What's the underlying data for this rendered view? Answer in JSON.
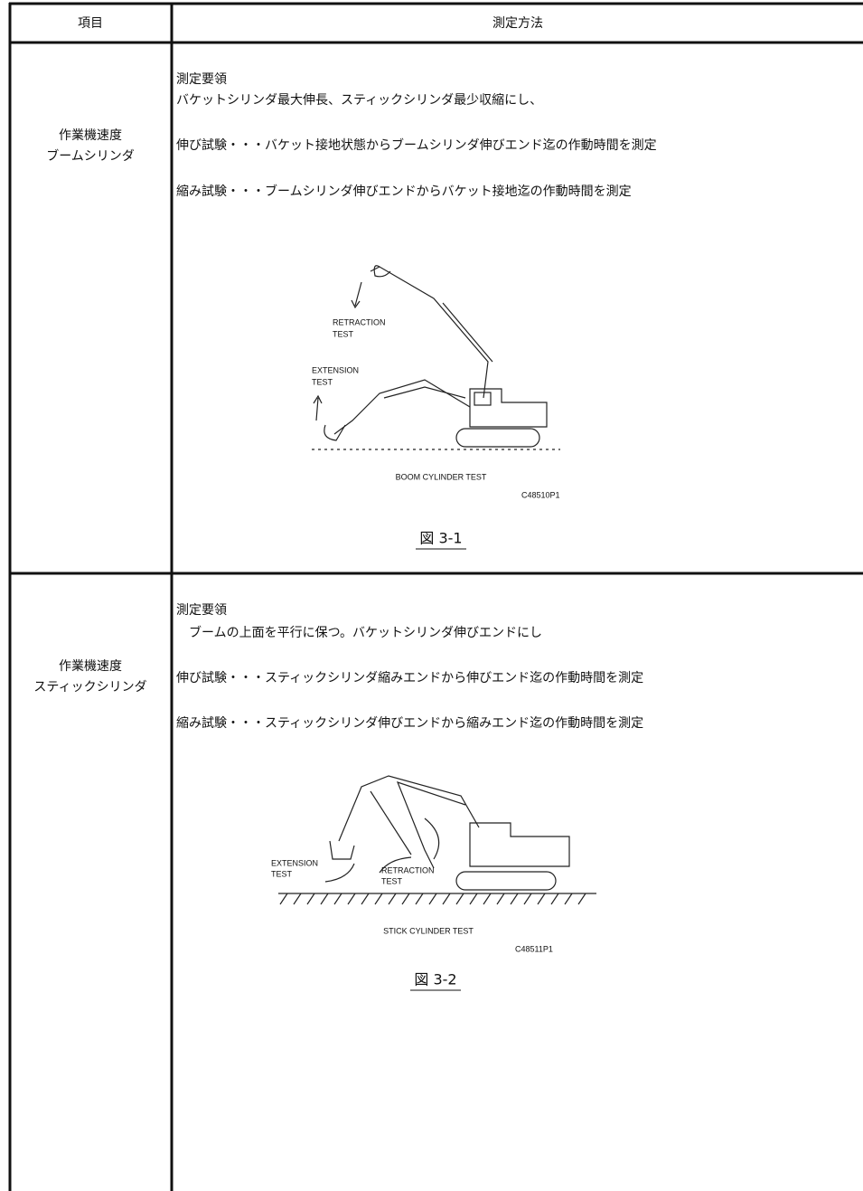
{
  "header": {
    "col1": "項目",
    "col2": "測定方法"
  },
  "rows": [
    {
      "item": [
        "作業機速度",
        "ブームシリンダ"
      ],
      "method": [
        "測定要領",
        "バケットシリンダ最大伸長、スティックシリンダ最少収縮にし、",
        "伸び試験・・・バケット接地状態からブームシリンダ伸びエンド迄の作動時間を測定",
        "縮み試験・・・ブームシリンダ伸びエンドからバケット接地迄の作動時間を測定"
      ],
      "figure": {
        "labels": [
          "RETRACTION",
          "TEST",
          "EXTENSION",
          "TEST"
        ],
        "title": "BOOM CYLINDER TEST",
        "code": "C48510P1",
        "caption": "図 3-1"
      }
    },
    {
      "item": [
        "作業機速度",
        "スティックシリンダ"
      ],
      "method": [
        "測定要領",
        "　ブームの上面を平行に保つ。バケットシリンダ伸びエンドにし",
        "伸び試験・・・スティックシリンダ縮みエンドから伸びエンド迄の作動時間を測定",
        "縮み試験・・・スティックシリンダ伸びエンドから縮みエンド迄の作動時間を測定"
      ],
      "figure": {
        "labels": [
          "EXTENSION",
          "TEST",
          "RETRACTION",
          "TEST"
        ],
        "title": "STICK CYLINDER TEST",
        "code": "C48511P1",
        "caption": "図 3-2"
      }
    }
  ]
}
